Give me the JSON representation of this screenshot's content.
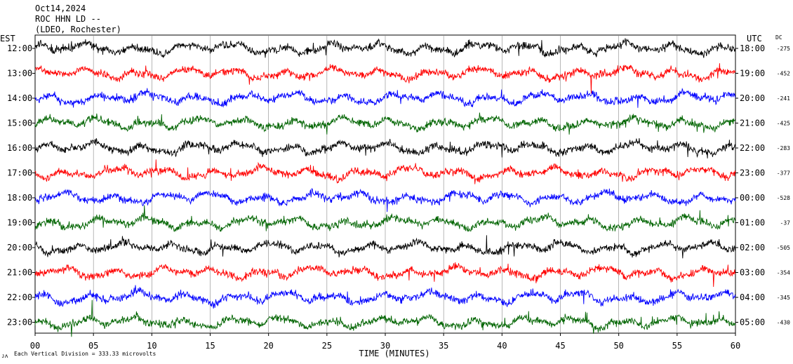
{
  "header": {
    "date": "Oct14,2024",
    "station": "ROC HHN LD --",
    "network": "(LDEO, Rochester)"
  },
  "axis": {
    "left_title": "EST",
    "right_title": "UTC",
    "dc_title": "DC",
    "xlabel": "TIME (MINUTES)"
  },
  "footer": {
    "scale_note": "Each Vertical Division =  333.33 microvolts"
  },
  "colors": {
    "trace_cycle": [
      "#000000",
      "#ff0000",
      "#0000ff",
      "#006400"
    ],
    "frame": "#000000",
    "grid": "#888888"
  },
  "chart_data": {
    "type": "line",
    "title": "",
    "xlabel": "TIME (MINUTES)",
    "ylabel": "",
    "xlim": [
      0,
      60
    ],
    "x_ticks": [
      "00",
      "05",
      "10",
      "15",
      "20",
      "25",
      "30",
      "35",
      "40",
      "45",
      "50",
      "55",
      "60"
    ],
    "grid": "vertical",
    "series": [
      {
        "est": "12:00",
        "utc": "18:00",
        "dc": "-275",
        "color": "#000000"
      },
      {
        "est": "13:00",
        "utc": "19:00",
        "dc": "-452",
        "color": "#ff0000"
      },
      {
        "est": "14:00",
        "utc": "20:00",
        "dc": "-241",
        "color": "#0000ff"
      },
      {
        "est": "15:00",
        "utc": "21:00",
        "dc": "-425",
        "color": "#006400"
      },
      {
        "est": "16:00",
        "utc": "22:00",
        "dc": "-283",
        "color": "#000000"
      },
      {
        "est": "17:00",
        "utc": "23:00",
        "dc": "-377",
        "color": "#ff0000"
      },
      {
        "est": "18:00",
        "utc": "00:00",
        "dc": "-528",
        "color": "#0000ff"
      },
      {
        "est": "19:00",
        "utc": "01:00",
        "dc": "-37",
        "color": "#006400"
      },
      {
        "est": "20:00",
        "utc": "02:00",
        "dc": "-505",
        "color": "#000000"
      },
      {
        "est": "21:00",
        "utc": "03:00",
        "dc": "-354",
        "color": "#ff0000"
      },
      {
        "est": "22:00",
        "utc": "04:00",
        "dc": "-345",
        "color": "#0000ff"
      },
      {
        "est": "23:00",
        "utc": "05:00",
        "dc": "-430",
        "color": "#006400"
      }
    ]
  }
}
